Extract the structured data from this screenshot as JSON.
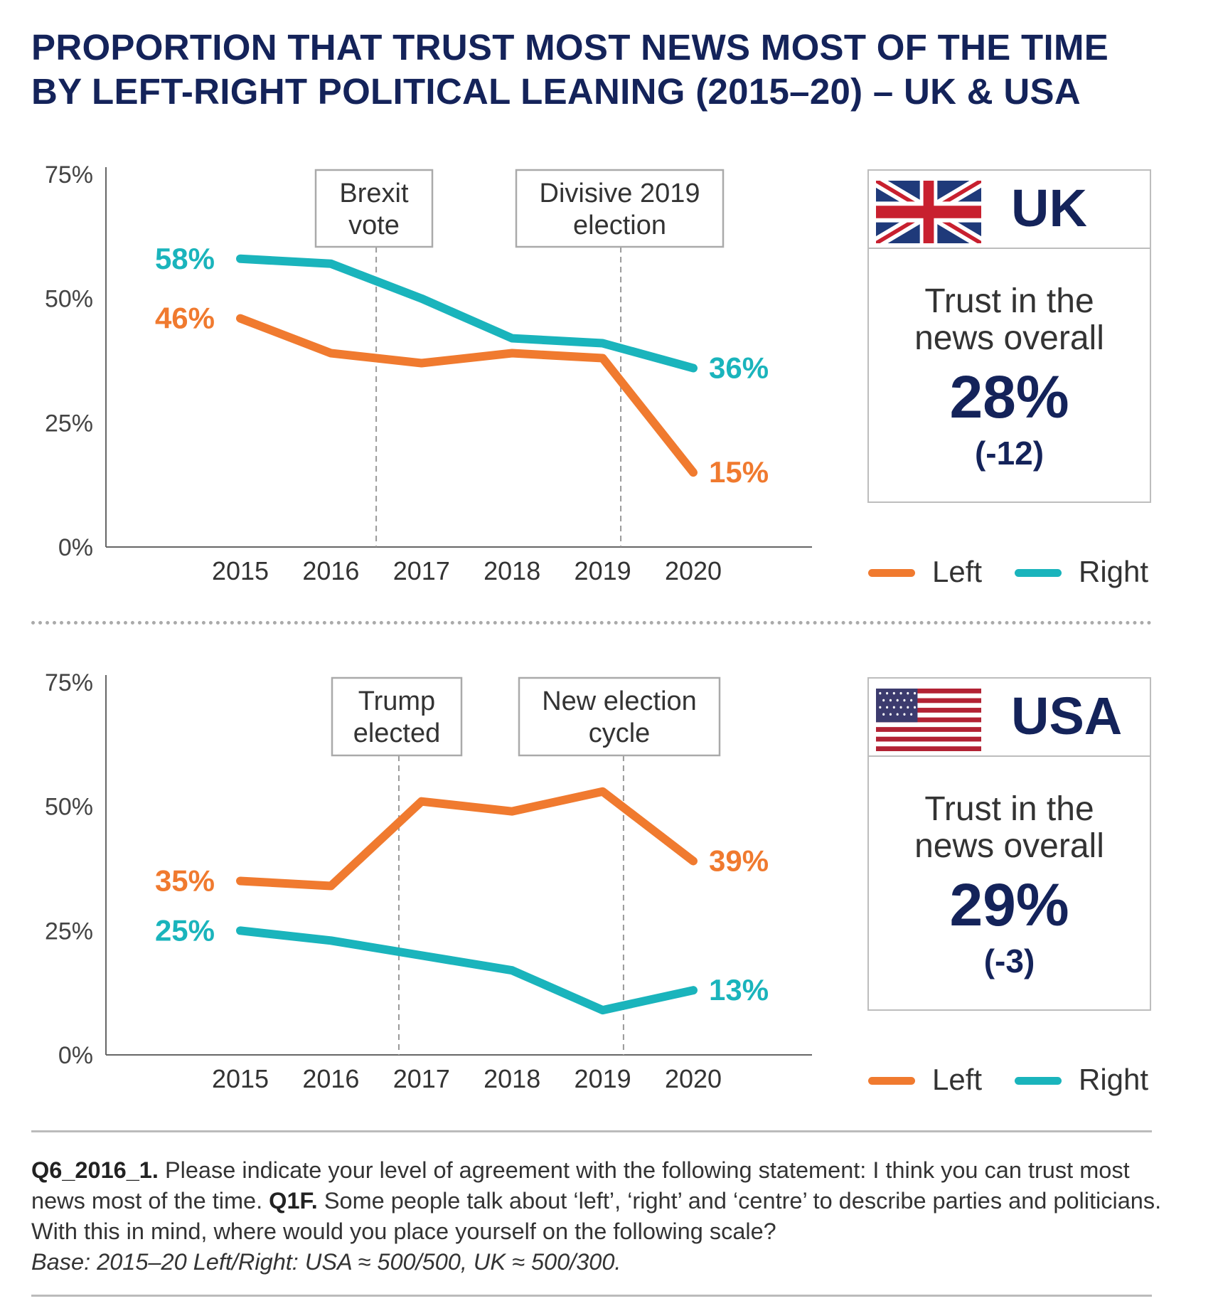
{
  "title": [
    "PROPORTION THAT TRUST MOST NEWS MOST OF THE TIME",
    "BY LEFT-RIGHT POLITICAL LEANING (2015–20) – UK & USA"
  ],
  "colors": {
    "left": "#f07a2f",
    "right": "#1ab4bc",
    "navy": "#14235a"
  },
  "legend": {
    "left": "Left",
    "right": "Right"
  },
  "chart_data": [
    {
      "type": "line",
      "country": "UK",
      "categories": [
        "2015",
        "2016",
        "2017",
        "2018",
        "2019",
        "2020"
      ],
      "yticks": [
        "0%",
        "25%",
        "50%",
        "75%"
      ],
      "ylim": [
        0,
        75
      ],
      "series": [
        {
          "name": "Left",
          "values": [
            46,
            39,
            37,
            39,
            38,
            15
          ],
          "start_label": "46%",
          "end_label": "15%"
        },
        {
          "name": "Right",
          "values": [
            58,
            57,
            50,
            42,
            41,
            36
          ],
          "start_label": "58%",
          "end_label": "36%"
        }
      ],
      "annotations": [
        {
          "lines": [
            "Brexit",
            "vote"
          ],
          "at_year": 2016.5
        },
        {
          "lines": [
            "Divisive 2019",
            "election"
          ],
          "at_year": 2019.2
        }
      ],
      "grid": false
    },
    {
      "type": "line",
      "country": "USA",
      "categories": [
        "2015",
        "2016",
        "2017",
        "2018",
        "2019",
        "2020"
      ],
      "yticks": [
        "0%",
        "25%",
        "50%",
        "75%"
      ],
      "ylim": [
        0,
        75
      ],
      "series": [
        {
          "name": "Left",
          "values": [
            35,
            34,
            51,
            49,
            53,
            39
          ],
          "start_label": "35%",
          "end_label": "39%"
        },
        {
          "name": "Right",
          "values": [
            25,
            23,
            20,
            17,
            9,
            13
          ],
          "start_label": "25%",
          "end_label": "13%"
        }
      ],
      "annotations": [
        {
          "lines": [
            "Trump",
            "elected"
          ],
          "at_year": 2016.75
        },
        {
          "lines": [
            "New election",
            "cycle"
          ],
          "at_year": 2019.23
        }
      ],
      "grid": false
    }
  ],
  "panels": [
    {
      "country": "UK",
      "flag": "uk-flag",
      "subtitle": [
        "Trust in the",
        "news overall"
      ],
      "value": "28%",
      "change": "(-12)"
    },
    {
      "country": "USA",
      "flag": "us-flag",
      "subtitle": [
        "Trust in the",
        "news overall"
      ],
      "value": "29%",
      "change": "(-3)"
    }
  ],
  "footnote": {
    "q1_code": "Q6_2016_1.",
    "q1_text": " Please indicate your level of agreement with the following statement: I think you can trust most news most of the time. ",
    "q2_code": "Q1F.",
    "q2_text": " Some people talk about ‘left’, ‘right’ and ‘centre’ to describe parties and politicians. With this in mind, where would you place yourself on the following scale?",
    "base": "Base: 2015–20 Left/Right: USA ≈ 500/500, UK ≈ 500/300."
  }
}
